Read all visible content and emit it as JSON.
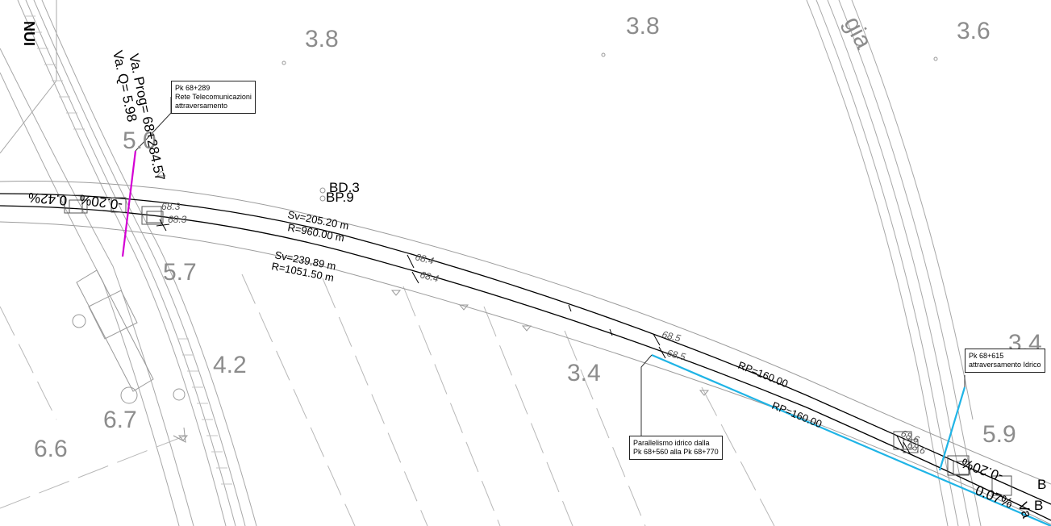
{
  "elevations": [
    "3.8",
    "3.8",
    "3.6",
    "5.0",
    "5.7",
    "4.2",
    "6.7",
    "6.6",
    "3.4",
    "3.4",
    "5.9"
  ],
  "place_fragment": "gia",
  "edge_fragment": "NUI",
  "va_prog": "Va. Prog= 68+284.57",
  "va_q": "Va. Q= 5.98",
  "bench_bd": "BD.3",
  "bench_bp": "BP.9",
  "slopes": [
    "0.42%",
    "-0.20%",
    "-0.20%",
    "0.07%"
  ],
  "spot_heights": [
    "68.3",
    "68.3",
    "68.4",
    "68.4",
    "68.5",
    "68.5",
    "68.6",
    "68.6"
  ],
  "curve_outer": {
    "sv": "Sv=205.20 m",
    "r": "R=960.00 m"
  },
  "curve_inner": {
    "sv": "Sv=239.89 m",
    "r": "R=1051.50 m"
  },
  "rp_labels": [
    "RP=160.00",
    "RP=160.00"
  ],
  "edge_labels": [
    "Va",
    "B",
    "B"
  ],
  "callouts": {
    "telecom": {
      "lines": [
        "Pk 68+289",
        "Rete Telecomunicazioni",
        "attraversamento"
      ]
    },
    "water_crossing": {
      "lines": [
        "Pk 68+615",
        "attraversamento Idrico"
      ]
    },
    "water_parallel": {
      "lines": [
        "Parallelismo idrico dalla",
        "Pk 68+560 alla Pk 68+770"
      ]
    }
  },
  "colors": {
    "telecom_line": "#d400d4",
    "water_line": "#1fb4e6",
    "road_line": "#000000",
    "context_line": "#b0b0b0"
  }
}
